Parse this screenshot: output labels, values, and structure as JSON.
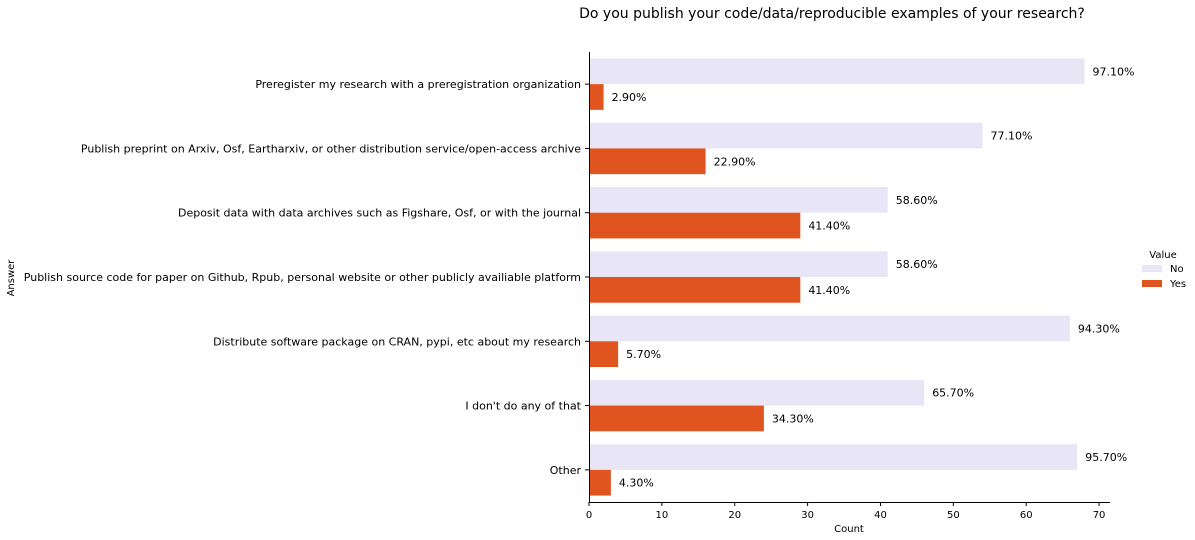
{
  "chart_data": {
    "type": "bar",
    "orientation": "horizontal",
    "title": "Do you publish your code/data/reproducible examples of your research?",
    "xlabel": "Count",
    "ylabel": "Answer",
    "xlim": [
      0,
      71.5
    ],
    "xticks": [
      "0",
      "10",
      "20",
      "30",
      "40",
      "50",
      "60",
      "70"
    ],
    "categories": [
      "Preregister my research with a preregistration organization",
      "Publish preprint on Arxiv, Osf, Eartharxiv, or other distribution service/open-access archive",
      "Deposit data with data archives such as Figshare, Osf, or with the journal",
      "Publish source code for paper on Github, Rpub, personal website or other publicly availiable platform",
      "Distribute software package on CRAN, pypi, etc about my research",
      "I don't do any of that",
      "Other"
    ],
    "series": [
      {
        "name": "No",
        "color": "#e8e6f6",
        "values": [
          68,
          54,
          41,
          41,
          66,
          46,
          67
        ],
        "labels": [
          "97.10%",
          "77.10%",
          "58.60%",
          "58.60%",
          "94.30%",
          "65.70%",
          "95.70%"
        ]
      },
      {
        "name": "Yes",
        "color": "#e05420",
        "values": [
          2,
          16,
          29,
          29,
          4,
          24,
          3
        ],
        "labels": [
          "2.90%",
          "22.90%",
          "41.40%",
          "41.40%",
          "5.70%",
          "34.30%",
          "4.30%"
        ]
      }
    ],
    "legend": {
      "title": "Value",
      "placement": "right"
    },
    "grid": false
  }
}
